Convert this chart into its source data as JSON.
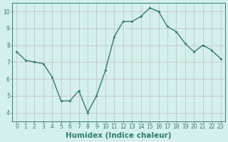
{
  "x": [
    0,
    1,
    2,
    3,
    4,
    5,
    6,
    7,
    8,
    9,
    10,
    11,
    12,
    13,
    14,
    15,
    16,
    17,
    18,
    19,
    20,
    21,
    22,
    23
  ],
  "y": [
    7.6,
    7.1,
    7.0,
    6.9,
    6.1,
    4.7,
    4.7,
    5.3,
    4.0,
    5.0,
    6.5,
    8.5,
    9.4,
    9.4,
    9.7,
    10.2,
    10.0,
    9.1,
    8.8,
    8.1,
    7.6,
    8.0,
    7.7,
    7.2
  ],
  "line_color": "#2e7d6e",
  "marker": "s",
  "marker_size": 1.8,
  "line_width": 1.0,
  "bg_color": "#d4f0ee",
  "grid_color": "#c8b8b8",
  "xlabel": "Humidex (Indice chaleur)",
  "xlabel_fontsize": 7.5,
  "xlim": [
    -0.5,
    23.5
  ],
  "ylim": [
    3.5,
    10.5
  ],
  "yticks": [
    4,
    5,
    6,
    7,
    8,
    9,
    10
  ],
  "xticks": [
    0,
    1,
    2,
    3,
    4,
    5,
    6,
    7,
    8,
    9,
    10,
    11,
    12,
    13,
    14,
    15,
    16,
    17,
    18,
    19,
    20,
    21,
    22,
    23
  ],
  "tick_fontsize": 5.5,
  "axis_color": "#2e7d6e"
}
